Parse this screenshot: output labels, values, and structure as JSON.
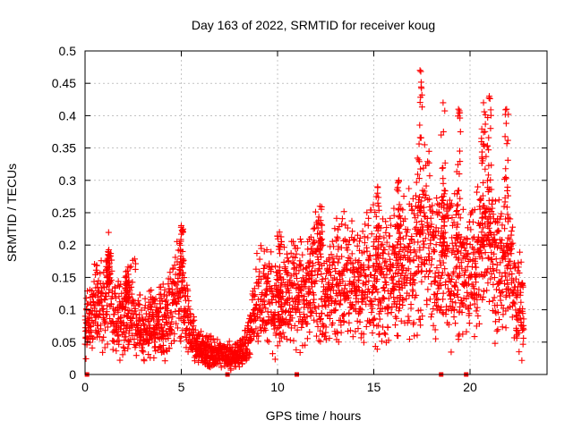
{
  "chart_data": {
    "type": "scatter",
    "title": "Day 163 of 2022, SRMTID for receiver koug",
    "xlabel": "GPS time / hours",
    "ylabel": "SRMTID / TECUs",
    "xlim": [
      0,
      24
    ],
    "ylim": [
      0,
      0.5
    ],
    "xticks": [
      0,
      5,
      10,
      15,
      20
    ],
    "yticks": [
      0,
      0.05,
      0.1,
      0.15,
      0.2,
      0.25,
      0.3,
      0.35,
      0.4,
      0.45,
      0.5
    ],
    "grid": true,
    "marker": "plus",
    "color": "#ff0000",
    "zero_markers_x": [
      0.1,
      7.4,
      11.0,
      18.5,
      19.8
    ],
    "envelope": [
      {
        "x": 0.0,
        "y": 0.07
      },
      {
        "x": 0.3,
        "y": 0.09
      },
      {
        "x": 0.6,
        "y": 0.12
      },
      {
        "x": 0.9,
        "y": 0.1
      },
      {
        "x": 1.2,
        "y": 0.14
      },
      {
        "x": 1.5,
        "y": 0.08
      },
      {
        "x": 2.0,
        "y": 0.09
      },
      {
        "x": 2.5,
        "y": 0.11
      },
      {
        "x": 3.0,
        "y": 0.07
      },
      {
        "x": 3.5,
        "y": 0.08
      },
      {
        "x": 4.0,
        "y": 0.08
      },
      {
        "x": 4.5,
        "y": 0.1
      },
      {
        "x": 5.0,
        "y": 0.13
      },
      {
        "x": 5.4,
        "y": 0.08
      },
      {
        "x": 5.7,
        "y": 0.05
      },
      {
        "x": 6.0,
        "y": 0.04
      },
      {
        "x": 6.5,
        "y": 0.035
      },
      {
        "x": 7.0,
        "y": 0.03
      },
      {
        "x": 7.5,
        "y": 0.03
      },
      {
        "x": 8.0,
        "y": 0.03
      },
      {
        "x": 8.5,
        "y": 0.05
      },
      {
        "x": 9.0,
        "y": 0.12
      },
      {
        "x": 9.5,
        "y": 0.12
      },
      {
        "x": 10.0,
        "y": 0.1
      },
      {
        "x": 10.5,
        "y": 0.12
      },
      {
        "x": 11.0,
        "y": 0.12
      },
      {
        "x": 11.5,
        "y": 0.12
      },
      {
        "x": 12.0,
        "y": 0.16
      },
      {
        "x": 12.5,
        "y": 0.13
      },
      {
        "x": 13.0,
        "y": 0.14
      },
      {
        "x": 13.5,
        "y": 0.15
      },
      {
        "x": 14.0,
        "y": 0.15
      },
      {
        "x": 14.5,
        "y": 0.15
      },
      {
        "x": 15.0,
        "y": 0.16
      },
      {
        "x": 15.5,
        "y": 0.15
      },
      {
        "x": 16.0,
        "y": 0.15
      },
      {
        "x": 16.5,
        "y": 0.17
      },
      {
        "x": 17.0,
        "y": 0.18
      },
      {
        "x": 17.5,
        "y": 0.22
      },
      {
        "x": 18.0,
        "y": 0.19
      },
      {
        "x": 18.5,
        "y": 0.17
      },
      {
        "x": 19.0,
        "y": 0.17
      },
      {
        "x": 19.5,
        "y": 0.16
      },
      {
        "x": 20.0,
        "y": 0.16
      },
      {
        "x": 20.5,
        "y": 0.18
      },
      {
        "x": 21.0,
        "y": 0.2
      },
      {
        "x": 21.5,
        "y": 0.17
      },
      {
        "x": 22.0,
        "y": 0.17
      },
      {
        "x": 22.5,
        "y": 0.12
      },
      {
        "x": 22.8,
        "y": 0.09
      }
    ],
    "peaks": [
      {
        "x": 1.2,
        "y": 0.19
      },
      {
        "x": 2.2,
        "y": 0.16
      },
      {
        "x": 5.0,
        "y": 0.23
      },
      {
        "x": 10.1,
        "y": 0.22
      },
      {
        "x": 12.2,
        "y": 0.26
      },
      {
        "x": 15.2,
        "y": 0.29
      },
      {
        "x": 16.3,
        "y": 0.3
      },
      {
        "x": 17.4,
        "y": 0.47
      },
      {
        "x": 18.6,
        "y": 0.42
      },
      {
        "x": 19.4,
        "y": 0.41
      },
      {
        "x": 20.7,
        "y": 0.42
      },
      {
        "x": 21.0,
        "y": 0.43
      },
      {
        "x": 21.9,
        "y": 0.41
      }
    ]
  }
}
